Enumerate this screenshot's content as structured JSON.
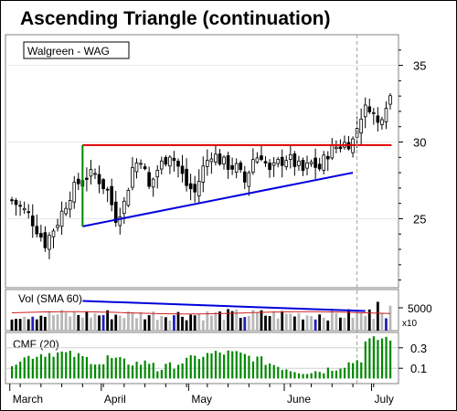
{
  "chart_data": {
    "type": "candlestick",
    "title": "Ascending Triangle (continuation)",
    "ticker_label": "Walgreen - WAG",
    "x_month_labels": [
      "March",
      "April",
      "May",
      "June",
      "July"
    ],
    "price_axis": {
      "ticks": [
        25,
        30,
        35
      ],
      "range": [
        20.5,
        37
      ]
    },
    "volume_panel": {
      "label": "Vol (SMA 60)",
      "tick": 5000,
      "multiplier": "x10"
    },
    "cmf_panel": {
      "label": "CMF (20)",
      "ticks": [
        0.1,
        0.3
      ]
    },
    "patterns": {
      "resistance": {
        "from": "2001-03-26",
        "to": "2001-07-05",
        "price": 29.8
      },
      "support": {
        "from": "2001-03-26",
        "to": "2001-06-25",
        "start_price": 24.5,
        "end_price": 28.0
      },
      "volume_trend": {
        "from": "2001-03-26",
        "to": "2001-06-28",
        "start_volume": 6500,
        "end_volume": 4300
      }
    },
    "colors": {
      "up": "#ffffff",
      "down": "#000000",
      "resistance": "#e00000",
      "support": "#0000dd",
      "cmf": "#008800",
      "volume": "#b0b0b0"
    }
  }
}
